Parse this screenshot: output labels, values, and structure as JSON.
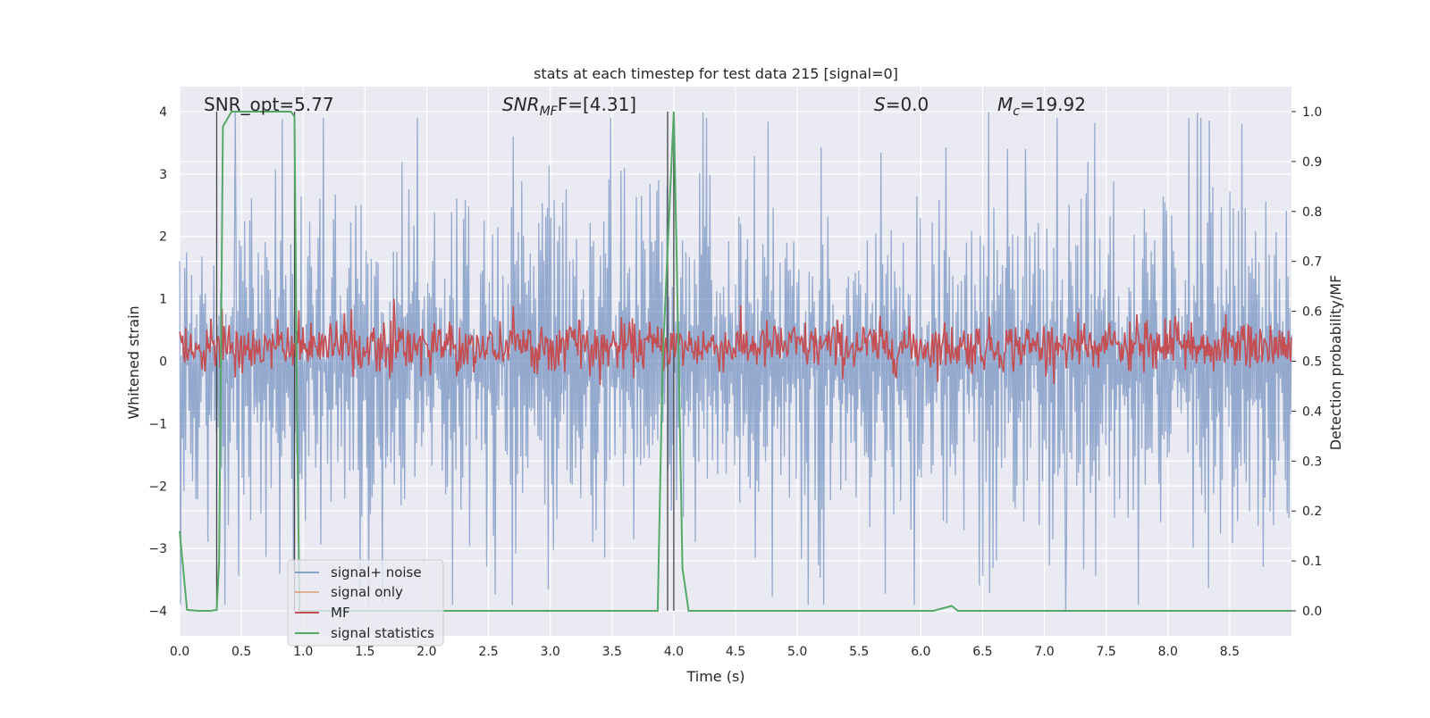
{
  "chart_data": {
    "type": "line",
    "title": "stats at each timestep for test data 215 [signal=0]",
    "xlabel": "Time (s)",
    "ylabel_left": "Whitened strain",
    "ylabel_right": "Detection probability/MF",
    "xlim": [
      0.0,
      9.0
    ],
    "ylim_left": [
      -4.4,
      4.4
    ],
    "ylim_right": [
      -0.05,
      1.05
    ],
    "x_ticks": [
      "0.0",
      "0.5",
      "1.0",
      "1.5",
      "2.0",
      "2.5",
      "3.0",
      "3.5",
      "4.0",
      "4.5",
      "5.0",
      "5.5",
      "6.0",
      "6.5",
      "7.0",
      "7.5",
      "8.0",
      "8.5"
    ],
    "y_ticks_left": [
      "4",
      "3",
      "2",
      "1",
      "0",
      "−1",
      "−2",
      "−3",
      "−4"
    ],
    "y_ticks_right": [
      "1.0",
      "0.9",
      "0.8",
      "0.7",
      "0.6",
      "0.5",
      "0.4",
      "0.3",
      "0.2",
      "0.1",
      "0.0"
    ],
    "grid": true,
    "legend_position": "lower-left",
    "annotations": {
      "snr_opt": "SNR_opt=5.77",
      "snr_mf_main": "SNR",
      "snr_mf_sub": "MF",
      "snr_mf_rest": "F=[4.31]",
      "s_main": "S",
      "s_rest": "=0.0",
      "mc_main": "M",
      "mc_sub": "c",
      "mc_rest": "=19.92"
    },
    "series": [
      {
        "name": "signal+ noise",
        "color": "#4c72b0",
        "axis": "left",
        "kind": "noise",
        "amplitude_sigma": 0.8,
        "peak_values": [
          4.0,
          3.8,
          3.6,
          3.4,
          3.2
        ],
        "min_value": -4.0
      },
      {
        "name": "signal only",
        "color": "#dd8452",
        "axis": "left",
        "values": "flat_zero"
      },
      {
        "name": "MF",
        "color": "#c44e52",
        "axis": "right",
        "kind": "noise",
        "mean": 0.53,
        "range": [
          0.45,
          0.63
        ]
      },
      {
        "name": "signal statistics",
        "color": "#55a868",
        "axis": "right",
        "points": [
          [
            0.0,
            0.16
          ],
          [
            0.06,
            0.002
          ],
          [
            0.15,
            0.0
          ],
          [
            0.25,
            0.0
          ],
          [
            0.3,
            0.002
          ],
          [
            0.32,
            0.1
          ],
          [
            0.35,
            0.97
          ],
          [
            0.42,
            1.0
          ],
          [
            0.9,
            1.0
          ],
          [
            0.93,
            0.99
          ],
          [
            0.95,
            0.4
          ],
          [
            0.97,
            0.0
          ],
          [
            3.87,
            0.0
          ],
          [
            3.91,
            0.5
          ],
          [
            4.0,
            1.0
          ],
          [
            4.04,
            0.5
          ],
          [
            4.07,
            0.085
          ],
          [
            4.12,
            0.0
          ],
          [
            6.1,
            0.0
          ],
          [
            6.25,
            0.01
          ],
          [
            6.3,
            0.0
          ],
          [
            9.0,
            0.0
          ]
        ]
      }
    ],
    "vertical_markers": [
      0.3,
      0.93,
      3.95,
      4.0
    ]
  }
}
